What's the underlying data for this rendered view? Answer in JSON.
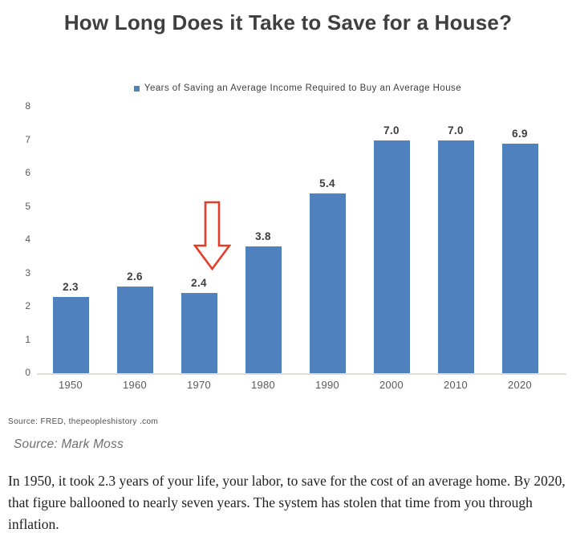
{
  "title": "How Long Does it Take to Save for a House?",
  "legend": {
    "label": "Years of Saving an Average Income Required to Buy an Average House",
    "marker_color": "#4e81bd"
  },
  "chart_data": {
    "type": "bar",
    "title": "How Long Does it Take to Save for a House?",
    "categories": [
      "1950",
      "1960",
      "1970",
      "1980",
      "1990",
      "2000",
      "2010",
      "2020"
    ],
    "values": [
      2.3,
      2.6,
      2.4,
      3.8,
      5.4,
      7.0,
      7.0,
      6.9
    ],
    "bar_labels": [
      "2.3",
      "2.6",
      "2.4",
      "3.8",
      "5.4",
      "7.0",
      "7.0",
      "6.9"
    ],
    "series_name": "Years of Saving an Average Income Required to Buy an Average House",
    "xlabel": "",
    "ylabel": "",
    "ylim": [
      0,
      8
    ],
    "yticks": [
      0,
      1,
      2,
      3,
      4,
      5,
      6,
      7,
      8
    ],
    "grid": false,
    "legend_position": "top-center",
    "bar_color": "#4e81bd",
    "annotation": {
      "type": "hollow-down-arrow",
      "target_category": "1970",
      "color": "#e53c27"
    }
  },
  "sources": {
    "fred": "Source: FRED, thepeopleshistory .com",
    "moss": "Source: Mark Moss"
  },
  "caption": {
    "text": "In 1950, it took 2.3 years of your life, your labor, to save for the cost of an average home. By 2020, that figure ballooned to nearly seven years. The system has stolen that time from you through inflation."
  }
}
